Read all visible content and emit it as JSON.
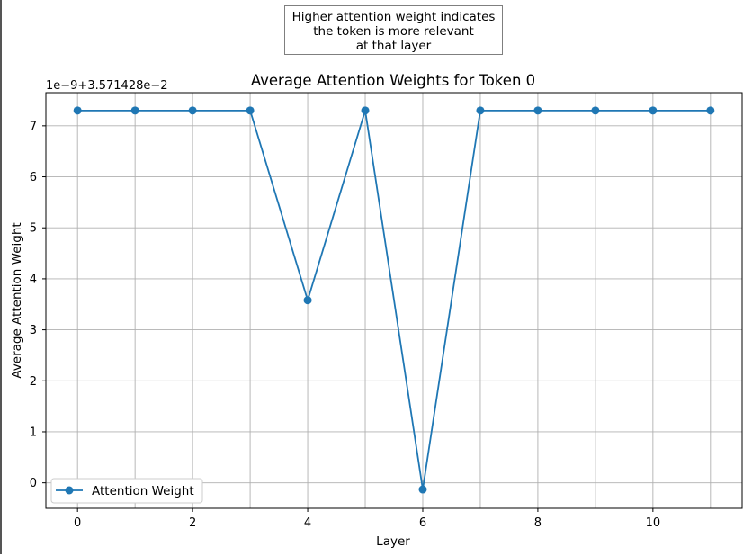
{
  "annotation": {
    "lines": [
      "Higher attention weight indicates",
      "the token is more relevant",
      "at that layer"
    ]
  },
  "colors": {
    "series": "#1f77b4",
    "grid": "#b0b0b0",
    "axes": "#000000"
  },
  "chart_data": {
    "type": "line",
    "title": "Average Attention Weights for Token 0",
    "xlabel": "Layer",
    "ylabel": "Average Attention Weight",
    "offset_label": "1e−9+3.571428e−2",
    "x": [
      0,
      1,
      2,
      3,
      4,
      5,
      6,
      7,
      8,
      9,
      10,
      11
    ],
    "series": [
      {
        "name": "Attention Weight",
        "marker": "circle",
        "values": [
          7.3,
          7.3,
          7.3,
          7.3,
          3.58,
          7.3,
          -0.13,
          7.3,
          7.3,
          7.3,
          7.3,
          7.3
        ]
      }
    ],
    "xlim": [
      -0.55,
      11.55
    ],
    "ylim": [
      -0.5,
      7.65
    ],
    "xticks": [
      0,
      2,
      4,
      6,
      8,
      10
    ],
    "yticks": [
      0,
      1,
      2,
      3,
      4,
      5,
      6,
      7
    ],
    "grid": true,
    "legend": "lower-left"
  }
}
